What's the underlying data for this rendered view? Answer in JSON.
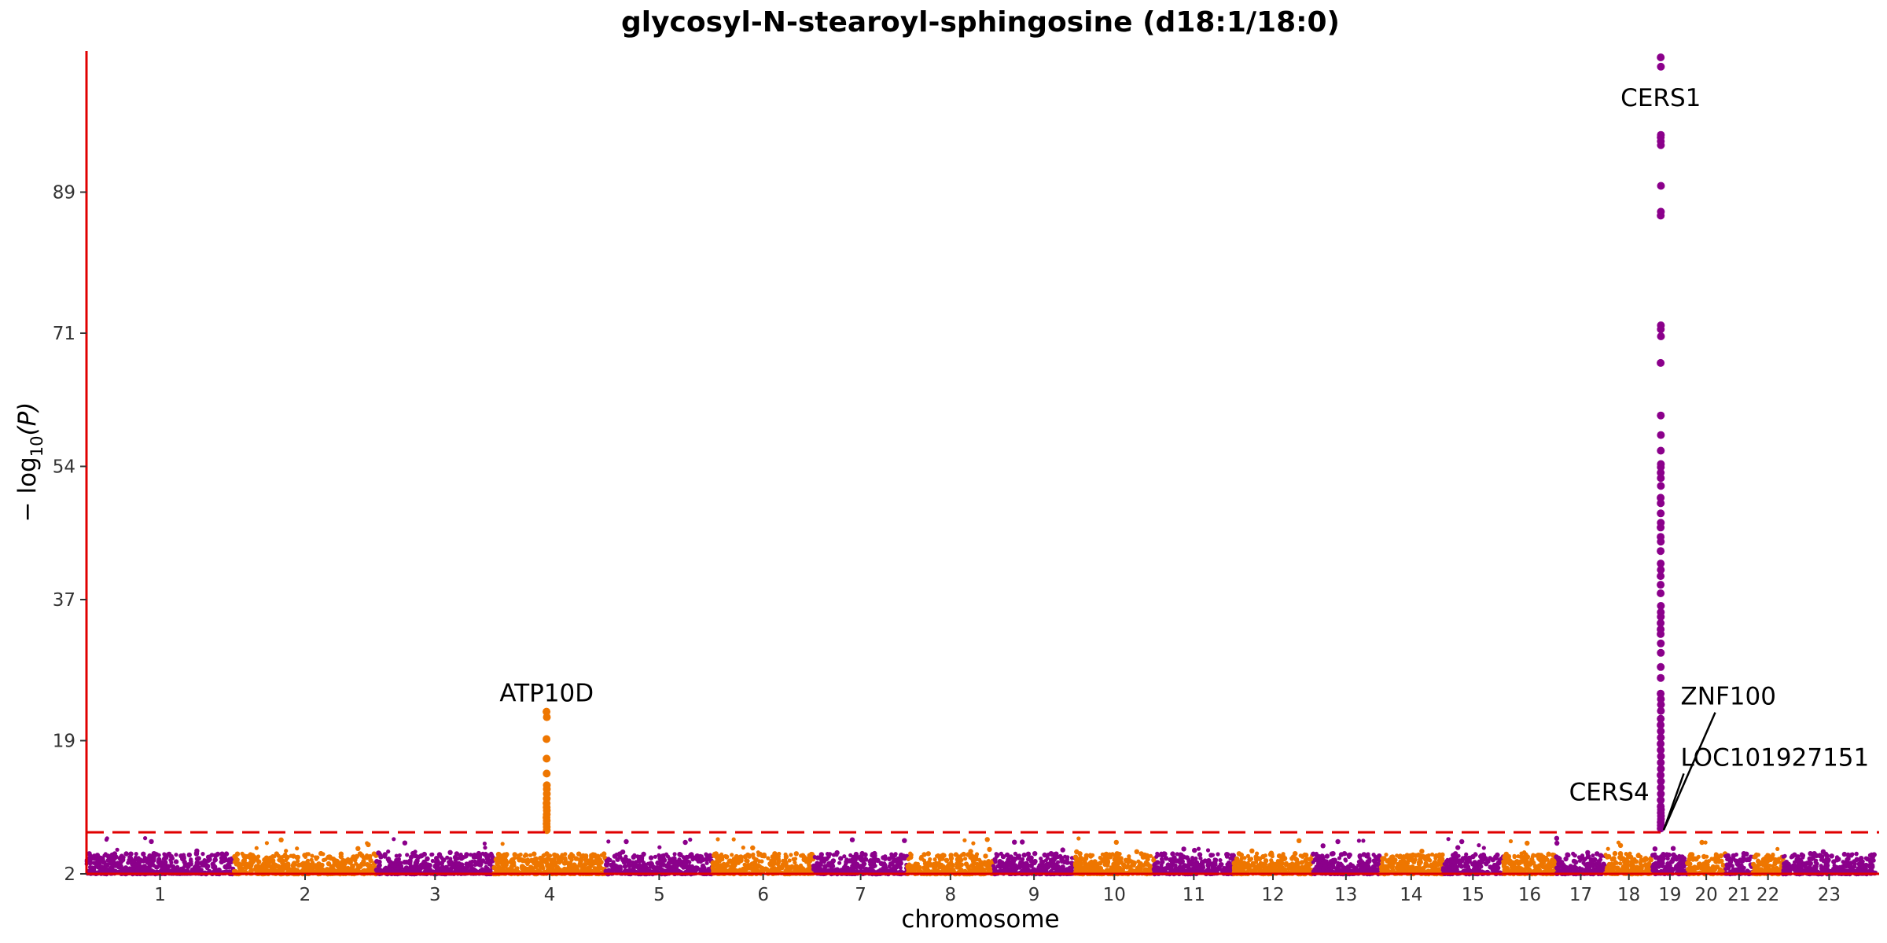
{
  "chart_data": {
    "type": "scatter",
    "title": "glycosyl-N-stearoyl-sphingosine (d18:1/18:0)",
    "xlabel": "chromosome",
    "ylabel_prefix": "− log",
    "ylabel_sub": "10",
    "ylabel_suffix": "(P)",
    "ylim": [
      2,
      107
    ],
    "yticks": [
      "2",
      "19",
      "37",
      "54",
      "71",
      "89"
    ],
    "ytick_values": [
      2,
      19,
      37,
      54,
      71,
      89
    ],
    "significance_threshold": 7.3,
    "colors": {
      "odd": "#8B008B",
      "even": "#EE7600",
      "axis": "#E00000",
      "threshold": "#E00000"
    },
    "chromosomes": [
      {
        "label": "1",
        "length": 249
      },
      {
        "label": "2",
        "length": 242
      },
      {
        "label": "3",
        "length": 198
      },
      {
        "label": "4",
        "length": 190
      },
      {
        "label": "5",
        "length": 181
      },
      {
        "label": "6",
        "length": 171
      },
      {
        "label": "7",
        "length": 159
      },
      {
        "label": "8",
        "length": 145
      },
      {
        "label": "9",
        "length": 138
      },
      {
        "label": "10",
        "length": 134
      },
      {
        "label": "11",
        "length": 135
      },
      {
        "label": "12",
        "length": 133
      },
      {
        "label": "13",
        "length": 114
      },
      {
        "label": "14",
        "length": 107
      },
      {
        "label": "15",
        "length": 102
      },
      {
        "label": "16",
        "length": 90
      },
      {
        "label": "17",
        "length": 83
      },
      {
        "label": "18",
        "length": 80
      },
      {
        "label": "19",
        "length": 59
      },
      {
        "label": "20",
        "length": 64
      },
      {
        "label": "21",
        "length": 47
      },
      {
        "label": "22",
        "length": 51
      },
      {
        "label": "23",
        "length": 156
      }
    ],
    "peaks": [
      {
        "chromosome": "4",
        "position": 90,
        "values": [
          22.7,
          22.0,
          19.2,
          16.7,
          14.8,
          13.3,
          12.8,
          12.2,
          11.6,
          11.0,
          10.5,
          10.1,
          9.6,
          9.2,
          8.8,
          8.4,
          8.0,
          7.6
        ]
      },
      {
        "chromosome": "19",
        "position": 14,
        "values": [
          106.2,
          105.0,
          96.3,
          96.0,
          95.5,
          95.0,
          89.8,
          86.5,
          86.0,
          72.0,
          71.5,
          70.6,
          67.2,
          60.5,
          58.0,
          56.0,
          54.3,
          53.9,
          53.2,
          52.5,
          51.5,
          50.0,
          49.3,
          48.0,
          46.8,
          46.2,
          45.0,
          44.4,
          43.2,
          41.6,
          40.8,
          40.0,
          38.9,
          37.8,
          36.2,
          35.4,
          34.8,
          34.0,
          33.2,
          32.6,
          31.4,
          30.2,
          28.4,
          27.0,
          25.0,
          24.3,
          23.6,
          22.8,
          21.8,
          21.0,
          20.2,
          19.4,
          18.6,
          17.8,
          17.0,
          16.2,
          15.4,
          14.6,
          13.8,
          13.0,
          12.2,
          11.4,
          10.6,
          10.2,
          9.8,
          9.4,
          9.0,
          8.6,
          8.2,
          7.8
        ]
      }
    ],
    "annotations": [
      {
        "text": "CERS1",
        "chromosome": "19",
        "position": 14,
        "y": 100
      },
      {
        "text": "ATP10D",
        "chromosome": "4",
        "position": 90,
        "y": 24
      },
      {
        "text": "ZNF100",
        "chromosome": "19",
        "position": 21,
        "y": 19.2
      },
      {
        "text": "LOC101927151",
        "chromosome": "19",
        "position": 21,
        "y": 11.6
      },
      {
        "text": "CERS4",
        "chromosome": "19",
        "position": 8,
        "y": 11.4
      }
    ]
  }
}
